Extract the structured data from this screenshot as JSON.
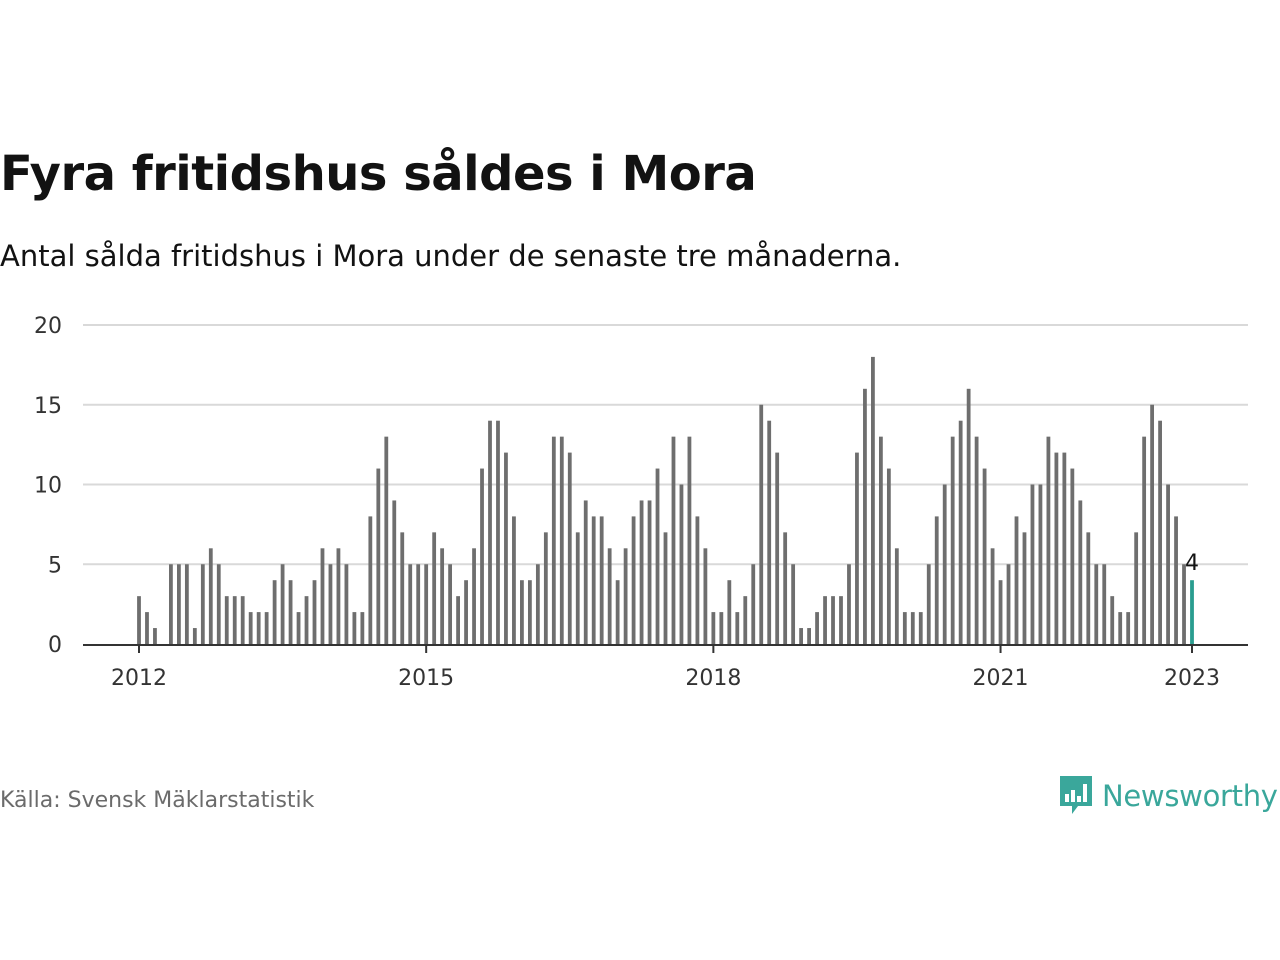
{
  "header": {
    "title": "Fyra fritidshus såldes i Mora",
    "subtitle": "Antal sålda fritidshus i Mora under de senaste tre månaderna."
  },
  "footer": {
    "source": "Källa: Svensk Mäklarstatistik",
    "brand": "Newsworthy",
    "brand_icon": "bar-chart-speech-bubble-icon"
  },
  "colors": {
    "bar": "#6e6e6e",
    "highlight": "#2a9d8f",
    "grid": "#d9d9d9",
    "axis": "#333333",
    "brand": "#3aa79b"
  },
  "chart_data": {
    "type": "bar",
    "x_start": "2012-01",
    "x_end": "2023-01",
    "x_ticks": [
      "2012",
      "2015",
      "2018",
      "2021",
      "2023"
    ],
    "y_ticks": [
      0,
      5,
      10,
      15,
      20
    ],
    "ylim": [
      0,
      20
    ],
    "grid": true,
    "values": [
      3,
      2,
      1,
      0,
      5,
      5,
      5,
      1,
      5,
      6,
      5,
      3,
      3,
      3,
      2,
      2,
      2,
      4,
      5,
      4,
      2,
      3,
      4,
      6,
      5,
      6,
      5,
      2,
      2,
      8,
      11,
      13,
      9,
      7,
      5,
      5,
      5,
      7,
      6,
      5,
      3,
      4,
      6,
      11,
      14,
      14,
      12,
      8,
      4,
      4,
      5,
      7,
      13,
      13,
      12,
      7,
      9,
      8,
      8,
      6,
      4,
      6,
      8,
      9,
      9,
      11,
      7,
      13,
      10,
      13,
      8,
      6,
      2,
      2,
      4,
      2,
      3,
      5,
      15,
      14,
      12,
      7,
      5,
      1,
      1,
      2,
      3,
      3,
      3,
      5,
      12,
      16,
      18,
      13,
      11,
      6,
      2,
      2,
      2,
      5,
      8,
      10,
      13,
      14,
      16,
      13,
      11,
      6,
      4,
      5,
      8,
      7,
      10,
      10,
      13,
      12,
      12,
      11,
      9,
      7,
      5,
      5,
      3,
      2,
      2,
      7,
      13,
      15,
      14,
      10,
      8,
      5,
      4
    ],
    "highlight_last": true,
    "last_label": "4"
  }
}
